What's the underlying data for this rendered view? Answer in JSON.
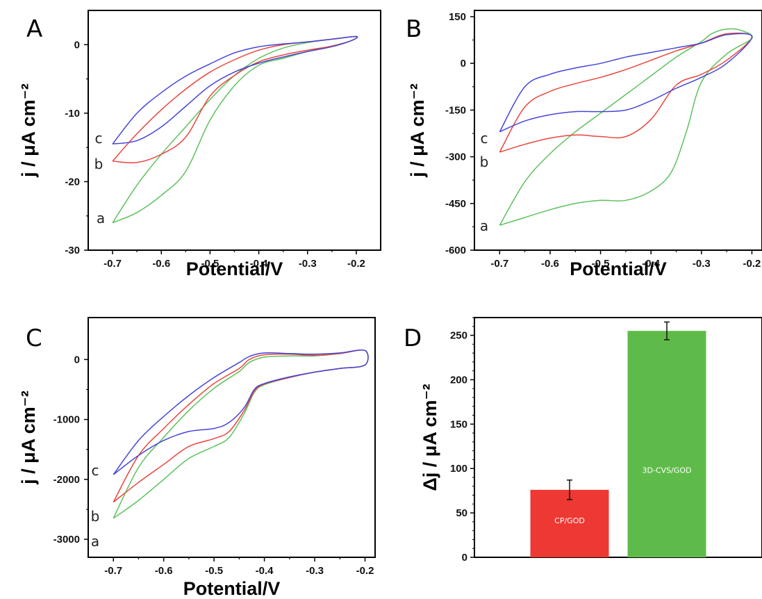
{
  "colors": {
    "a": "#5cc15c",
    "b": "#e8453c",
    "c": "#4545d8",
    "bar_cp": "#ee3833",
    "bar_3d": "#5fbb49",
    "axis": "#000000"
  },
  "chart_data": [
    {
      "panel": "A",
      "type": "line",
      "xlabel": "Potential/V",
      "ylabel": "j / μA cm⁻²",
      "xlim": [
        -0.75,
        -0.15
      ],
      "ylim": [
        -30,
        5
      ],
      "xticks": [
        -0.7,
        -0.6,
        -0.5,
        -0.4,
        -0.3,
        -0.2
      ],
      "xtick_labels": [
        "-0.7",
        "-0.6",
        "-0.5",
        "-0.4",
        "-0.3",
        "-0.2"
      ],
      "yticks": [
        0,
        -10,
        -20,
        -30
      ],
      "ytick_labels": [
        "0",
        "-10",
        "-20",
        "-30"
      ],
      "series": [
        {
          "name": "a",
          "color_key": "a",
          "x": [
            -0.7,
            -0.65,
            -0.6,
            -0.55,
            -0.5,
            -0.45,
            -0.4,
            -0.35,
            -0.3,
            -0.25,
            -0.21,
            -0.2,
            -0.25,
            -0.3,
            -0.35,
            -0.4,
            -0.45,
            -0.5,
            -0.55,
            -0.6,
            -0.65,
            -0.7
          ],
          "y": [
            -26.0,
            -24.5,
            -22.0,
            -18.5,
            -11.0,
            -6.0,
            -3.0,
            -2.0,
            -1.0,
            -0.2,
            0.6,
            1.2,
            0.8,
            0.3,
            -0.5,
            -2.0,
            -4.5,
            -8.0,
            -12.0,
            -16.0,
            -20.5,
            -26.0
          ]
        },
        {
          "name": "b",
          "color_key": "b",
          "x": [
            -0.7,
            -0.65,
            -0.6,
            -0.55,
            -0.5,
            -0.45,
            -0.4,
            -0.35,
            -0.3,
            -0.25,
            -0.21,
            -0.2,
            -0.25,
            -0.3,
            -0.35,
            -0.4,
            -0.45,
            -0.5,
            -0.55,
            -0.6,
            -0.65,
            -0.7
          ],
          "y": [
            -17.0,
            -17.2,
            -16.0,
            -13.5,
            -7.5,
            -4.5,
            -2.5,
            -1.5,
            -0.8,
            -0.2,
            0.6,
            1.2,
            0.8,
            0.4,
            0.0,
            -0.8,
            -2.2,
            -4.0,
            -6.5,
            -9.5,
            -13.0,
            -17.0
          ]
        },
        {
          "name": "c",
          "color_key": "c",
          "x": [
            -0.7,
            -0.65,
            -0.6,
            -0.55,
            -0.5,
            -0.45,
            -0.4,
            -0.35,
            -0.3,
            -0.25,
            -0.21,
            -0.2,
            -0.25,
            -0.3,
            -0.35,
            -0.4,
            -0.45,
            -0.5,
            -0.55,
            -0.6,
            -0.65,
            -0.7
          ],
          "y": [
            -14.5,
            -14.0,
            -12.0,
            -9.0,
            -6.0,
            -4.0,
            -2.7,
            -1.8,
            -1.0,
            -0.3,
            0.6,
            1.2,
            0.8,
            0.4,
            0.1,
            -0.3,
            -1.2,
            -2.8,
            -4.6,
            -7.0,
            -10.0,
            -14.5
          ]
        }
      ],
      "curve_labels": [
        "a",
        "b",
        "c"
      ]
    },
    {
      "panel": "B",
      "type": "line",
      "xlabel": "Potential/V",
      "ylabel": "j / μA cm⁻²",
      "xlim": [
        -0.75,
        -0.18
      ],
      "ylim": [
        -600,
        170
      ],
      "xticks": [
        -0.7,
        -0.6,
        -0.5,
        -0.4,
        -0.3,
        -0.2
      ],
      "xtick_labels": [
        "-0.7",
        "-0.6",
        "-0.5",
        "-0.4",
        "-0.3",
        "-0.2"
      ],
      "yticks": [
        150,
        0,
        -150,
        -300,
        -450,
        -600
      ],
      "ytick_labels": [
        "150",
        "0",
        "-150",
        "-300",
        "-450",
        "-600"
      ],
      "series": [
        {
          "name": "a",
          "color_key": "a",
          "x": [
            -0.7,
            -0.65,
            -0.6,
            -0.55,
            -0.5,
            -0.45,
            -0.4,
            -0.36,
            -0.33,
            -0.3,
            -0.25,
            -0.2,
            -0.22,
            -0.25,
            -0.28,
            -0.3,
            -0.35,
            -0.4,
            -0.45,
            -0.5,
            -0.55,
            -0.6,
            -0.65,
            -0.7
          ],
          "y": [
            -520,
            -495,
            -470,
            -450,
            -440,
            -440,
            -410,
            -350,
            -220,
            -60,
            30,
            80,
            105,
            110,
            95,
            70,
            20,
            -40,
            -100,
            -160,
            -220,
            -290,
            -380,
            -520
          ]
        },
        {
          "name": "b",
          "color_key": "b",
          "x": [
            -0.7,
            -0.65,
            -0.6,
            -0.55,
            -0.5,
            -0.45,
            -0.4,
            -0.35,
            -0.3,
            -0.25,
            -0.2,
            -0.25,
            -0.3,
            -0.35,
            -0.4,
            -0.45,
            -0.5,
            -0.55,
            -0.6,
            -0.65,
            -0.7
          ],
          "y": [
            -285,
            -260,
            -240,
            -230,
            -235,
            -235,
            -180,
            -70,
            -35,
            10,
            85,
            95,
            65,
            40,
            10,
            -20,
            -45,
            -65,
            -90,
            -140,
            -285
          ]
        },
        {
          "name": "c",
          "color_key": "c",
          "x": [
            -0.7,
            -0.65,
            -0.6,
            -0.55,
            -0.5,
            -0.45,
            -0.4,
            -0.35,
            -0.3,
            -0.25,
            -0.2,
            -0.25,
            -0.3,
            -0.35,
            -0.4,
            -0.45,
            -0.5,
            -0.55,
            -0.6,
            -0.65,
            -0.7
          ],
          "y": [
            -220,
            -185,
            -165,
            -155,
            -155,
            -150,
            -120,
            -80,
            -45,
            0,
            85,
            92,
            65,
            50,
            35,
            20,
            0,
            -15,
            -35,
            -75,
            -220
          ]
        }
      ],
      "curve_labels": [
        "a",
        "b",
        "c"
      ]
    },
    {
      "panel": "C",
      "type": "line",
      "xlabel": "Potential/V",
      "ylabel": "j / μA cm⁻²",
      "xlim": [
        -0.75,
        -0.18
      ],
      "ylim": [
        -3300,
        700
      ],
      "xticks": [
        -0.7,
        -0.6,
        -0.5,
        -0.4,
        -0.3,
        -0.2
      ],
      "xtick_labels": [
        "-0.7",
        "-0.6",
        "-0.5",
        "-0.4",
        "-0.3",
        "-0.2"
      ],
      "yticks": [
        0,
        -1000,
        -2000,
        -3000
      ],
      "ytick_labels": [
        "0",
        "-1000",
        "-2000",
        "-3000"
      ],
      "series": [
        {
          "name": "a",
          "color_key": "a",
          "x": [
            -0.7,
            -0.65,
            -0.6,
            -0.55,
            -0.5,
            -0.47,
            -0.44,
            -0.42,
            -0.4,
            -0.35,
            -0.3,
            -0.25,
            -0.2,
            -0.2,
            -0.25,
            -0.3,
            -0.35,
            -0.4,
            -0.43,
            -0.45,
            -0.5,
            -0.55,
            -0.6,
            -0.65,
            -0.7
          ],
          "y": [
            -2650,
            -2350,
            -2000,
            -1650,
            -1450,
            -1300,
            -900,
            -550,
            -420,
            -300,
            -210,
            -150,
            -90,
            150,
            100,
            60,
            60,
            40,
            -50,
            -200,
            -480,
            -850,
            -1300,
            -1800,
            -2650
          ]
        },
        {
          "name": "b",
          "color_key": "b",
          "x": [
            -0.7,
            -0.65,
            -0.6,
            -0.55,
            -0.5,
            -0.47,
            -0.44,
            -0.42,
            -0.4,
            -0.35,
            -0.3,
            -0.25,
            -0.2,
            -0.2,
            -0.25,
            -0.3,
            -0.35,
            -0.4,
            -0.43,
            -0.45,
            -0.5,
            -0.55,
            -0.6,
            -0.65,
            -0.7
          ],
          "y": [
            -2380,
            -2050,
            -1750,
            -1450,
            -1320,
            -1200,
            -850,
            -530,
            -410,
            -300,
            -210,
            -150,
            -90,
            150,
            100,
            70,
            90,
            80,
            0,
            -150,
            -400,
            -750,
            -1150,
            -1600,
            -2380
          ]
        },
        {
          "name": "c",
          "color_key": "c",
          "x": [
            -0.7,
            -0.65,
            -0.6,
            -0.55,
            -0.5,
            -0.47,
            -0.44,
            -0.42,
            -0.4,
            -0.35,
            -0.3,
            -0.25,
            -0.2,
            -0.2,
            -0.25,
            -0.3,
            -0.35,
            -0.4,
            -0.43,
            -0.45,
            -0.5,
            -0.55,
            -0.6,
            -0.65,
            -0.7
          ],
          "y": [
            -1920,
            -1600,
            -1350,
            -1200,
            -1150,
            -1050,
            -800,
            -500,
            -400,
            -290,
            -210,
            -150,
            -90,
            150,
            110,
            90,
            100,
            110,
            50,
            -50,
            -300,
            -600,
            -950,
            -1350,
            -1920
          ]
        }
      ],
      "curve_labels": [
        "a",
        "b",
        "c"
      ]
    },
    {
      "panel": "D",
      "type": "bar",
      "ylabel": "Δj / μA cm⁻²",
      "ylim": [
        0,
        270
      ],
      "yticks": [
        0,
        50,
        100,
        150,
        200,
        250
      ],
      "ytick_labels": [
        "0",
        "50",
        "100",
        "150",
        "200",
        "250"
      ],
      "categories": [
        "CP/GOD",
        "3D-CVS/GOD"
      ],
      "values": [
        76,
        255
      ],
      "errors": [
        11,
        10
      ],
      "bar_color_keys": [
        "bar_cp",
        "bar_3d"
      ]
    }
  ]
}
